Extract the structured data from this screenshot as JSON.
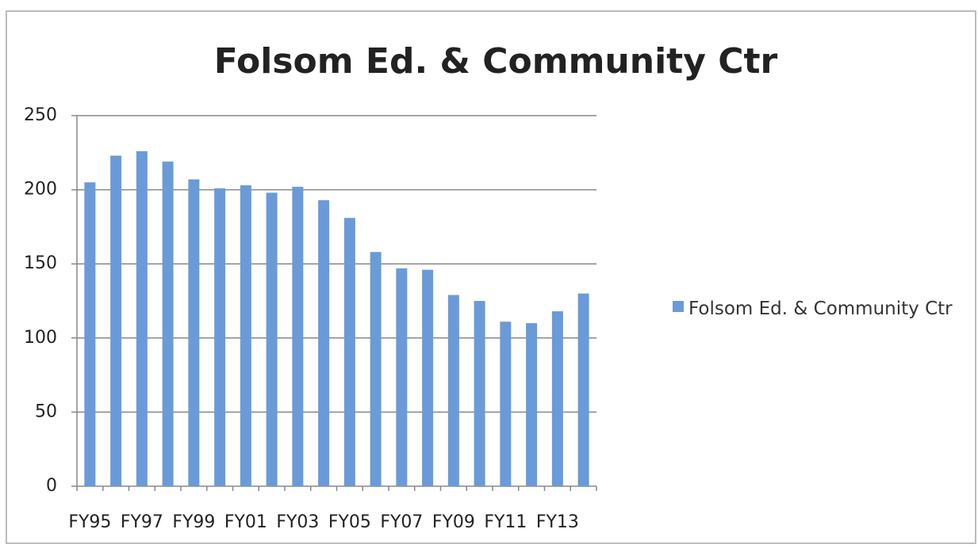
{
  "chart_data": {
    "type": "bar",
    "title": "Folsom Ed. & Community Ctr",
    "categories": [
      "FY95",
      null,
      "FY97",
      null,
      "FY99",
      null,
      "FY01",
      null,
      "FY03",
      null,
      "FY05",
      null,
      "FY07",
      null,
      "FY09",
      null,
      "FY11",
      null,
      "FY13",
      null
    ],
    "series": [
      {
        "name": "Folsom Ed. & Community Ctr",
        "color": "#6a9bd8",
        "values": [
          205,
          223,
          226,
          219,
          207,
          201,
          203,
          198,
          202,
          193,
          181,
          158,
          147,
          146,
          129,
          125,
          111,
          110,
          118,
          130
        ]
      }
    ],
    "ylim": [
      0,
      250
    ],
    "yticks": [
      0,
      50,
      100,
      150,
      200,
      250
    ],
    "grid": true,
    "legend": "right"
  }
}
